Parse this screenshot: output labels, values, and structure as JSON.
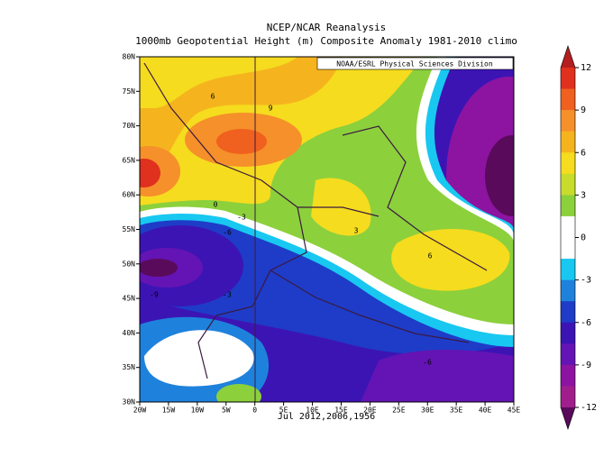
{
  "title": "NCEP/NCAR Reanalysis",
  "subtitle": "1000mb Geopotential Height (m) Composite Anomaly 1981-2010 climo",
  "credit": "NOAA/ESRL Physical Sciences Division",
  "x_label": "Jul 2012,2006,1956",
  "lon_ticks": [
    "20W",
    "15W",
    "10W",
    "5W",
    "0",
    "5E",
    "10E",
    "15E",
    "20E",
    "25E",
    "30E",
    "35E",
    "40E",
    "45E"
  ],
  "lat_ticks": [
    "80N",
    "75N",
    "70N",
    "65N",
    "60N",
    "55N",
    "50N",
    "45N",
    "40N",
    "35N",
    "30N"
  ],
  "contour_labels": [
    "6",
    "9",
    "0",
    "-3",
    "-6",
    "-9",
    "-3",
    "3",
    "6",
    "-6"
  ],
  "colorbar": {
    "ticks": [
      12,
      9,
      6,
      3,
      0,
      -3,
      -6,
      -9,
      -12
    ],
    "top_color": "#b41e1e",
    "bottom_color": "#5a0a5a",
    "colors": [
      "#e0301e",
      "#f0601e",
      "#f5902a",
      "#f5b41e",
      "#f5dc1e",
      "#c8dc2c",
      "#8cd03c",
      "#ffffff",
      "#ffffff",
      "#18c8f0",
      "#1e82dc",
      "#1e3cc8",
      "#3c14b4",
      "#6414b4",
      "#8c14a0",
      "#a01e8c"
    ]
  }
}
